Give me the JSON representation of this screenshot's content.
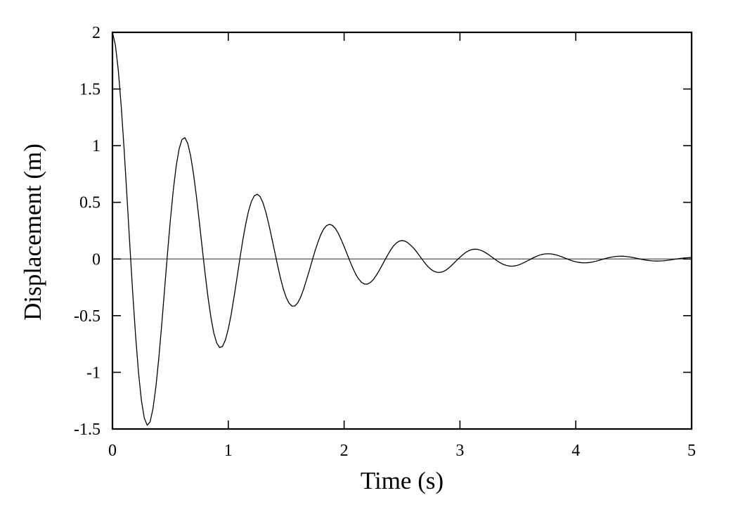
{
  "chart_data": {
    "type": "line",
    "title": "",
    "xlabel": "Time (s)",
    "ylabel": "Displacement (m)",
    "xlim": [
      0,
      5
    ],
    "ylim": [
      -1.5,
      2
    ],
    "x_ticks": [
      0,
      1,
      2,
      3,
      4,
      5
    ],
    "x_tick_labels": [
      "0",
      "1",
      "2",
      "3",
      "4",
      "5"
    ],
    "y_ticks": [
      -1.5,
      -1,
      -0.5,
      0,
      0.5,
      1,
      1.5,
      2
    ],
    "y_tick_labels": [
      "-1.5",
      "-1",
      "-0.5",
      "0",
      "0.5",
      "1",
      "1.5",
      "2"
    ],
    "grid": false,
    "legend": null,
    "reference_lines": [
      {
        "y": 0,
        "color": "#555555"
      }
    ],
    "series": [
      {
        "name": "displacement",
        "color": "#000000",
        "description": "Damped oscillation approx. 2·e^(-t)·cos(10t)",
        "x_step": 0.025,
        "x_start": 0,
        "values": [
          2.0,
          1.89,
          1.6696,
          1.3576,
          0.9778,
          0.5565,
          0.1218,
          -0.2993,
          -0.6814,
          -1.0032,
          -1.2479,
          -1.4041,
          -1.4668,
          -1.4366,
          -1.3198,
          -1.1279,
          -0.8763,
          -0.5833,
          -0.2688,
          0.0468,
          0.3441,
          0.6059,
          0.8177,
          0.9692,
          1.0539,
          1.0704,
          1.0197,
          0.9101,
          0.7488,
          0.5505,
          0.3275,
          0.0956,
          -0.1308,
          -0.3379,
          -0.5146,
          -0.653,
          -0.7409,
          -0.7807,
          -0.7713,
          -0.7147,
          -0.6174,
          -0.4893,
          -0.3328,
          -0.1677,
          0.0029,
          0.1648,
          0.3061,
          0.4243,
          0.5083,
          0.558,
          0.5717,
          0.5501,
          0.4946,
          0.4103,
          0.3058,
          0.1881,
          0.0674,
          -0.0535,
          -0.1661,
          -0.2636,
          -0.339,
          -0.3904,
          -0.4155,
          -0.414,
          -0.3867,
          -0.3363,
          -0.267,
          -0.1841,
          -0.1005,
          -0.0109,
          0.0748,
          0.152,
          0.2183,
          0.2671,
          0.2961,
          0.3056,
          0.2958,
          0.2686,
          0.2255,
          0.1699,
          0.1105,
          0.0458,
          -0.0188,
          -0.0796,
          -0.1341,
          -0.1765,
          -0.2054,
          -0.2205,
          -0.2216,
          -0.2088,
          -0.1841,
          -0.1487,
          -0.1068,
          -0.0603,
          -0.0128,
          0.0334,
          0.077,
          0.1137,
          0.1405,
          0.1572,
          0.1627,
          0.1578,
          0.1433,
          0.1207,
          0.0961,
          0.0641,
          0.0295,
          -0.0051,
          -0.0393,
          -0.0683,
          -0.0917,
          -0.1082,
          -0.1171,
          -0.1186,
          -0.1129,
          -0.1009,
          -0.0823,
          -0.0595,
          -0.0342,
          -0.0085,
          0.0154,
          0.0383,
          0.0579,
          0.0729,
          0.0824,
          0.0868,
          0.0854,
          0.0787,
          0.068,
          0.0536,
          0.0367,
          0.0183,
          -0.001,
          -0.0192,
          -0.0348,
          -0.0477,
          -0.0566,
          -0.0621,
          -0.0634,
          -0.0608,
          -0.0546,
          -0.0451,
          -0.0334,
          -0.0202,
          -0.007,
          0.0064,
          0.0188,
          0.0295,
          0.0378,
          0.0434,
          0.0461,
          0.0458,
          0.0427,
          0.0373,
          0.03,
          0.0212,
          0.0108,
          0.0008,
          -0.0089,
          -0.0175,
          -0.0244,
          -0.0296,
          -0.0328,
          -0.0338,
          -0.0327,
          -0.0298,
          -0.0251,
          -0.0191,
          -0.012,
          -0.0046,
          0.0026,
          0.0094,
          0.0151,
          0.0197,
          0.0229,
          0.0245,
          0.0246,
          0.0231,
          0.0203,
          0.0164,
          0.0117,
          0.0065,
          0.0011,
          -0.004,
          -0.0087,
          -0.0126,
          -0.0155,
          -0.0174,
          -0.0181,
          -0.0176,
          -0.016,
          -0.0135,
          -0.0105,
          -0.0069,
          -0.003,
          0.001,
          0.0045,
          0.0077,
          0.0102,
          0.012,
          0.013
        ]
      }
    ]
  }
}
